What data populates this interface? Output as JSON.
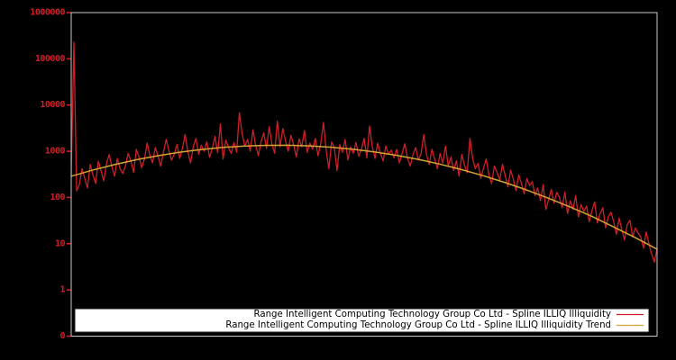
{
  "chart_data": {
    "type": "line",
    "title": "",
    "xlabel": "",
    "ylabel": "",
    "y_scale": "log",
    "y_tick_labels": [
      "1000000",
      "100000",
      "10000",
      "1000",
      "100",
      "10",
      "1",
      "0"
    ],
    "x_tick_labels": [],
    "grid": false,
    "legend_position": "bottom-inside",
    "ylim_log_exponents": [
      0,
      6
    ],
    "series": [
      {
        "name": "Range Intelligent Computing Technology Group Co Ltd - Spline ILLIQ Illiquidity",
        "color": "#d01f29",
        "stroke_width": 1.3,
        "values": [
          300,
          230000,
          140,
          190,
          420,
          260,
          160,
          520,
          310,
          200,
          610,
          380,
          230,
          540,
          850,
          460,
          290,
          700,
          420,
          330,
          480,
          900,
          620,
          350,
          1100,
          760,
          440,
          680,
          1500,
          820,
          560,
          1200,
          790,
          480,
          950,
          1800,
          1050,
          640,
          870,
          1400,
          700,
          1150,
          2300,
          980,
          560,
          1250,
          1900,
          850,
          1350,
          1000,
          1600,
          740,
          1150,
          2100,
          920,
          3900,
          680,
          1750,
          1200,
          900,
          1550,
          950,
          6800,
          2400,
          1300,
          1800,
          1000,
          2900,
          1350,
          800,
          1600,
          2500,
          1150,
          3400,
          1450,
          900,
          4500,
          1250,
          3100,
          1700,
          1000,
          2200,
          1400,
          750,
          1850,
          1250,
          2800,
          950,
          1500,
          1100,
          1900,
          800,
          1450,
          4200,
          1050,
          420,
          1600,
          1200,
          380,
          1400,
          950,
          1800,
          650,
          1250,
          900,
          1550,
          780,
          1100,
          1900,
          720,
          3500,
          1250,
          700,
          1500,
          900,
          620,
          1300,
          850,
          1050,
          720,
          1100,
          560,
          900,
          1450,
          700,
          480,
          850,
          1200,
          640,
          900,
          2300,
          850,
          520,
          1100,
          680,
          420,
          900,
          560,
          1300,
          480,
          750,
          380,
          620,
          290,
          850,
          500,
          340,
          1900,
          700,
          420,
          550,
          260,
          430,
          680,
          310,
          200,
          480,
          350,
          240,
          520,
          300,
          170,
          390,
          250,
          140,
          310,
          200,
          120,
          260,
          180,
          220,
          110,
          160,
          85,
          190,
          55,
          90,
          150,
          75,
          130,
          100,
          60,
          130,
          45,
          85,
          55,
          110,
          38,
          70,
          50,
          65,
          30,
          52,
          80,
          28,
          45,
          60,
          22,
          38,
          48,
          30,
          16,
          36,
          20,
          12,
          26,
          32,
          14,
          22,
          17,
          14,
          8,
          18,
          10,
          6,
          4,
          8
        ]
      },
      {
        "name": "Range Intelligent Computing Technology Group Co Ltd - Spline ILLIQ Illiquidity Trend",
        "color": "#d2a433",
        "stroke_width": 1.5,
        "values": [
          288,
          392,
          515,
          655,
          803,
          953,
          1094,
          1213,
          1300,
          1346,
          1349,
          1303,
          1219,
          1102,
          964,
          815,
          665,
          525,
          400,
          295,
          210,
          145,
          96,
          62,
          39,
          23,
          13.5,
          7.6
        ]
      }
    ]
  },
  "colors": {
    "background": "#000000",
    "plot_border": "#c8c8c8",
    "axis_label": "#d01f29",
    "axis_tick": "#d01f29",
    "legend_bg": "#ffffff",
    "legend_border": "#1c1c1c",
    "legend_text": "#000000"
  }
}
